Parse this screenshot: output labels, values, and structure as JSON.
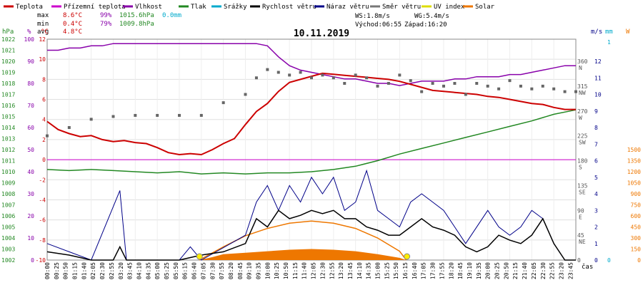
{
  "chart_data": {
    "type": "line",
    "title": "10.11.2019",
    "legend": [
      {
        "label": "Teplota",
        "color": "#cc0000"
      },
      {
        "label": "Přízemní teplota",
        "color": "#cc00cc"
      },
      {
        "label": "Vlhkost",
        "color": "#8800aa"
      },
      {
        "label": "Tlak",
        "color": "#228822"
      },
      {
        "label": "Srážky",
        "color": "#00aacc"
      },
      {
        "label": "Rychlost větru",
        "color": "#000000"
      },
      {
        "label": "Náraz větru",
        "color": "#000088"
      },
      {
        "label": "Směr větru",
        "color": "#777777"
      },
      {
        "label": "UV index",
        "color": "#dddd00"
      },
      {
        "label": "Solar",
        "color": "#ee7700"
      }
    ],
    "stats": {
      "max": {
        "label": "max",
        "temp": "8.6°C",
        "hum": "99%",
        "press": "1015.6hPa",
        "rain": "0.0mm"
      },
      "min": {
        "label": "min",
        "temp": "0.4°C",
        "hum": "79%",
        "press": "1009.8hPa"
      },
      "avg": {
        "label": "avg",
        "temp": "4.8°C"
      }
    },
    "wind_info": {
      "ws": "WS:1.8m/s",
      "wg": "WG:5.4m/s",
      "sunrise": "Východ:06:55",
      "sunset": "Západ:16:20"
    },
    "axes": {
      "hpa": {
        "unit": "hPa",
        "ticks": [
          "1022",
          "1021",
          "1020",
          "1019",
          "1018",
          "1017",
          "1016",
          "1015",
          "1014",
          "1013",
          "1012",
          "1011",
          "1010",
          "1009",
          "1008",
          "1007",
          "1006",
          "1005",
          "1004",
          "1003",
          "1002"
        ]
      },
      "pct": {
        "unit": "%",
        "ticks": [
          "100",
          "90",
          "80",
          "70",
          "60",
          "50",
          "40",
          "30",
          "20",
          "10",
          "0"
        ]
      },
      "temp": {
        "unit": "°C",
        "ticks": [
          "12",
          "10",
          "8",
          "6",
          "4",
          "2",
          "0",
          "-2",
          "-4",
          "-6",
          "-8",
          "-10"
        ]
      },
      "dir": {
        "ticks": [
          "360",
          "315",
          "270",
          "225",
          "180",
          "135",
          "90",
          "45",
          "0"
        ],
        "compass": [
          "N",
          "NW",
          "W",
          "SW",
          "S",
          "SE",
          "E",
          "NE",
          ""
        ]
      },
      "mm": {
        "unit": "mm",
        "ticks": [
          "1",
          "0"
        ]
      },
      "ms": {
        "unit": "m/s",
        "ticks": [
          "12",
          "11",
          "10",
          "9",
          "8",
          "7",
          "6",
          "5",
          "4",
          "3",
          "2",
          "1",
          "0"
        ]
      },
      "wm2": {
        "unit": "W",
        "ticks": [
          "1500",
          "1350",
          "1200",
          "1050",
          "900",
          "750",
          "600",
          "450",
          "300",
          "150",
          "0"
        ]
      },
      "x_label": "čas",
      "x_ticks": [
        "00:00",
        "00:25",
        "00:50",
        "01:15",
        "01:40",
        "02:05",
        "02:30",
        "02:55",
        "03:20",
        "03:45",
        "04:10",
        "04:35",
        "05:00",
        "05:25",
        "05:50",
        "06:15",
        "06:40",
        "07:05",
        "07:30",
        "07:55",
        "08:20",
        "08:45",
        "09:10",
        "09:35",
        "10:00",
        "10:25",
        "10:50",
        "11:15",
        "11:40",
        "12:05",
        "12:30",
        "12:55",
        "13:20",
        "13:45",
        "14:10",
        "14:35",
        "15:00",
        "15:25",
        "15:50",
        "16:15",
        "16:40",
        "17:05",
        "17:30",
        "17:55",
        "18:20",
        "18:45",
        "19:10",
        "19:35",
        "20:00",
        "20:25",
        "20:50",
        "21:15",
        "21:40",
        "22:05",
        "22:30",
        "22:55",
        "23:20",
        "23:45"
      ]
    },
    "series": {
      "temperature": [
        [
          0,
          3.8
        ],
        [
          0.5,
          3.0
        ],
        [
          1,
          2.6
        ],
        [
          1.5,
          2.3
        ],
        [
          2,
          2.4
        ],
        [
          2.5,
          2.0
        ],
        [
          3,
          1.8
        ],
        [
          3.5,
          1.9
        ],
        [
          4,
          1.7
        ],
        [
          4.5,
          1.6
        ],
        [
          5,
          1.2
        ],
        [
          5.5,
          0.7
        ],
        [
          6,
          0.5
        ],
        [
          6.5,
          0.6
        ],
        [
          7,
          0.5
        ],
        [
          7.5,
          1.0
        ],
        [
          8,
          1.6
        ],
        [
          8.5,
          2.1
        ],
        [
          9,
          3.5
        ],
        [
          9.5,
          4.8
        ],
        [
          10,
          5.6
        ],
        [
          10.5,
          6.8
        ],
        [
          11,
          7.7
        ],
        [
          11.5,
          8.0
        ],
        [
          12,
          8.3
        ],
        [
          12.5,
          8.6
        ],
        [
          13,
          8.5
        ],
        [
          13.5,
          8.4
        ],
        [
          14,
          8.3
        ],
        [
          14.5,
          8.2
        ],
        [
          15,
          8.1
        ],
        [
          15.5,
          8.0
        ],
        [
          16,
          7.8
        ],
        [
          16.5,
          7.5
        ],
        [
          17,
          7.2
        ],
        [
          17.5,
          6.9
        ],
        [
          18,
          6.8
        ],
        [
          18.5,
          6.7
        ],
        [
          19,
          6.6
        ],
        [
          19.5,
          6.5
        ],
        [
          20,
          6.3
        ],
        [
          20.5,
          6.2
        ],
        [
          21,
          6.0
        ],
        [
          21.5,
          5.8
        ],
        [
          22,
          5.6
        ],
        [
          22.5,
          5.5
        ],
        [
          23,
          5.2
        ],
        [
          23.5,
          5.0
        ],
        [
          24,
          5.0
        ]
      ],
      "humidity": [
        [
          0,
          95
        ],
        [
          0.5,
          95
        ],
        [
          1,
          96
        ],
        [
          1.5,
          96
        ],
        [
          2,
          97
        ],
        [
          2.5,
          97
        ],
        [
          3,
          98
        ],
        [
          3.5,
          98
        ],
        [
          4,
          98
        ],
        [
          4.5,
          98
        ],
        [
          5,
          98
        ],
        [
          5.5,
          98
        ],
        [
          6,
          98
        ],
        [
          6.5,
          98
        ],
        [
          7,
          98
        ],
        [
          7.5,
          98
        ],
        [
          8,
          98
        ],
        [
          8.5,
          98
        ],
        [
          9,
          98
        ],
        [
          9.5,
          98
        ],
        [
          10,
          97
        ],
        [
          10.5,
          92
        ],
        [
          11,
          88
        ],
        [
          11.5,
          86
        ],
        [
          12,
          85
        ],
        [
          12.5,
          84
        ],
        [
          13,
          83
        ],
        [
          13.5,
          82
        ],
        [
          14,
          82
        ],
        [
          14.5,
          81
        ],
        [
          15,
          80
        ],
        [
          15.5,
          80
        ],
        [
          16,
          79
        ],
        [
          16.5,
          80
        ],
        [
          17,
          81
        ],
        [
          17.5,
          81
        ],
        [
          18,
          81
        ],
        [
          18.5,
          82
        ],
        [
          19,
          82
        ],
        [
          19.5,
          83
        ],
        [
          20,
          83
        ],
        [
          20.5,
          83
        ],
        [
          21,
          84
        ],
        [
          21.5,
          84
        ],
        [
          22,
          85
        ],
        [
          22.5,
          86
        ],
        [
          23,
          87
        ],
        [
          23.5,
          88
        ],
        [
          24,
          88
        ]
      ],
      "pressure": [
        [
          0,
          1010.2
        ],
        [
          1,
          1010.1
        ],
        [
          2,
          1010.2
        ],
        [
          3,
          1010.1
        ],
        [
          4,
          1010.0
        ],
        [
          5,
          1009.9
        ],
        [
          6,
          1010.0
        ],
        [
          7,
          1009.8
        ],
        [
          8,
          1009.9
        ],
        [
          9,
          1009.8
        ],
        [
          10,
          1009.9
        ],
        [
          11,
          1009.9
        ],
        [
          12,
          1010.0
        ],
        [
          13,
          1010.2
        ],
        [
          14,
          1010.5
        ],
        [
          15,
          1011.0
        ],
        [
          16,
          1011.6
        ],
        [
          17,
          1012.1
        ],
        [
          18,
          1012.6
        ],
        [
          19,
          1013.1
        ],
        [
          20,
          1013.6
        ],
        [
          21,
          1014.1
        ],
        [
          22,
          1014.6
        ],
        [
          23,
          1015.2
        ],
        [
          24,
          1015.6
        ]
      ],
      "ground_temp": [
        [
          0,
          0
        ],
        [
          24,
          0
        ]
      ],
      "wind_speed": [
        [
          0,
          0.5
        ],
        [
          1,
          0.3
        ],
        [
          2,
          0
        ],
        [
          3,
          0
        ],
        [
          3.3,
          0.8
        ],
        [
          3.6,
          0
        ],
        [
          6,
          0
        ],
        [
          7,
          0.3
        ],
        [
          8,
          0.5
        ],
        [
          9,
          1.0
        ],
        [
          9.5,
          2.5
        ],
        [
          10,
          2.0
        ],
        [
          10.5,
          3.0
        ],
        [
          11,
          2.5
        ],
        [
          11.5,
          2.7
        ],
        [
          12,
          3.0
        ],
        [
          12.5,
          2.8
        ],
        [
          13,
          3.0
        ],
        [
          13.5,
          2.5
        ],
        [
          14,
          2.5
        ],
        [
          14.5,
          2.0
        ],
        [
          15,
          1.8
        ],
        [
          15.5,
          1.5
        ],
        [
          16,
          1.5
        ],
        [
          16.5,
          2.0
        ],
        [
          17,
          2.5
        ],
        [
          17.5,
          2.0
        ],
        [
          18,
          1.8
        ],
        [
          18.5,
          1.5
        ],
        [
          19,
          0.8
        ],
        [
          19.5,
          0.5
        ],
        [
          20,
          0.8
        ],
        [
          20.5,
          1.5
        ],
        [
          21,
          1.2
        ],
        [
          21.5,
          1.0
        ],
        [
          22,
          1.5
        ],
        [
          22.5,
          2.5
        ],
        [
          23,
          1.0
        ],
        [
          23.5,
          0
        ],
        [
          24,
          0
        ]
      ],
      "wind_gust": [
        [
          0,
          1
        ],
        [
          1,
          0.5
        ],
        [
          2,
          0
        ],
        [
          3.3,
          4.2
        ],
        [
          3.6,
          0
        ],
        [
          6,
          0
        ],
        [
          6.5,
          0.8
        ],
        [
          7,
          0
        ],
        [
          9,
          1.5
        ],
        [
          9.5,
          3.5
        ],
        [
          10,
          4.5
        ],
        [
          10.5,
          3.0
        ],
        [
          11,
          4.5
        ],
        [
          11.5,
          3.5
        ],
        [
          12,
          5.0
        ],
        [
          12.5,
          4.0
        ],
        [
          13,
          5.0
        ],
        [
          13.5,
          3.0
        ],
        [
          14,
          3.5
        ],
        [
          14.5,
          5.4
        ],
        [
          15,
          3.0
        ],
        [
          15.5,
          2.5
        ],
        [
          16,
          2.0
        ],
        [
          16.5,
          3.5
        ],
        [
          17,
          4.0
        ],
        [
          17.5,
          3.5
        ],
        [
          18,
          3.0
        ],
        [
          18.5,
          2.0
        ],
        [
          19,
          1.0
        ],
        [
          20,
          3.0
        ],
        [
          20.5,
          2.0
        ],
        [
          21,
          1.5
        ],
        [
          21.5,
          2.0
        ],
        [
          22,
          3.0
        ],
        [
          22.5,
          2.5
        ],
        [
          23,
          1.0
        ],
        [
          23.5,
          0
        ],
        [
          24,
          0
        ]
      ],
      "wind_dir": [
        [
          0,
          225
        ],
        [
          1,
          240
        ],
        [
          2,
          255
        ],
        [
          3,
          260
        ],
        [
          4,
          262
        ],
        [
          5,
          262
        ],
        [
          6,
          262
        ],
        [
          7,
          262
        ],
        [
          8,
          285
        ],
        [
          9,
          300
        ],
        [
          9.5,
          330
        ],
        [
          10,
          345
        ],
        [
          10.5,
          340
        ],
        [
          11,
          335
        ],
        [
          11.5,
          340
        ],
        [
          12,
          330
        ],
        [
          12.5,
          335
        ],
        [
          13,
          330
        ],
        [
          13.5,
          320
        ],
        [
          14,
          335
        ],
        [
          14.5,
          330
        ],
        [
          15,
          315
        ],
        [
          15.5,
          320
        ],
        [
          16,
          335
        ],
        [
          16.5,
          325
        ],
        [
          17,
          305
        ],
        [
          17.5,
          320
        ],
        [
          18,
          315
        ],
        [
          18.5,
          320
        ],
        [
          19,
          300
        ],
        [
          19.5,
          320
        ],
        [
          20,
          315
        ],
        [
          20.5,
          310
        ],
        [
          21,
          325
        ],
        [
          21.5,
          315
        ],
        [
          22,
          310
        ],
        [
          22.5,
          315
        ],
        [
          23,
          310
        ],
        [
          23.5,
          305
        ],
        [
          24,
          305
        ]
      ],
      "solar": [
        [
          6.9,
          0
        ],
        [
          7.5,
          40
        ],
        [
          8,
          80
        ],
        [
          9,
          100
        ],
        [
          10,
          120
        ],
        [
          11,
          140
        ],
        [
          12,
          150
        ],
        [
          13,
          140
        ],
        [
          14,
          120
        ],
        [
          15,
          80
        ],
        [
          16,
          30
        ],
        [
          16.3,
          0
        ]
      ],
      "solar_theory": [
        [
          6.9,
          0
        ],
        [
          8,
          180
        ],
        [
          9,
          330
        ],
        [
          10,
          430
        ],
        [
          11,
          500
        ],
        [
          12,
          530
        ],
        [
          13,
          500
        ],
        [
          14,
          430
        ],
        [
          15,
          300
        ],
        [
          16,
          120
        ],
        [
          16.3,
          0
        ]
      ]
    }
  }
}
